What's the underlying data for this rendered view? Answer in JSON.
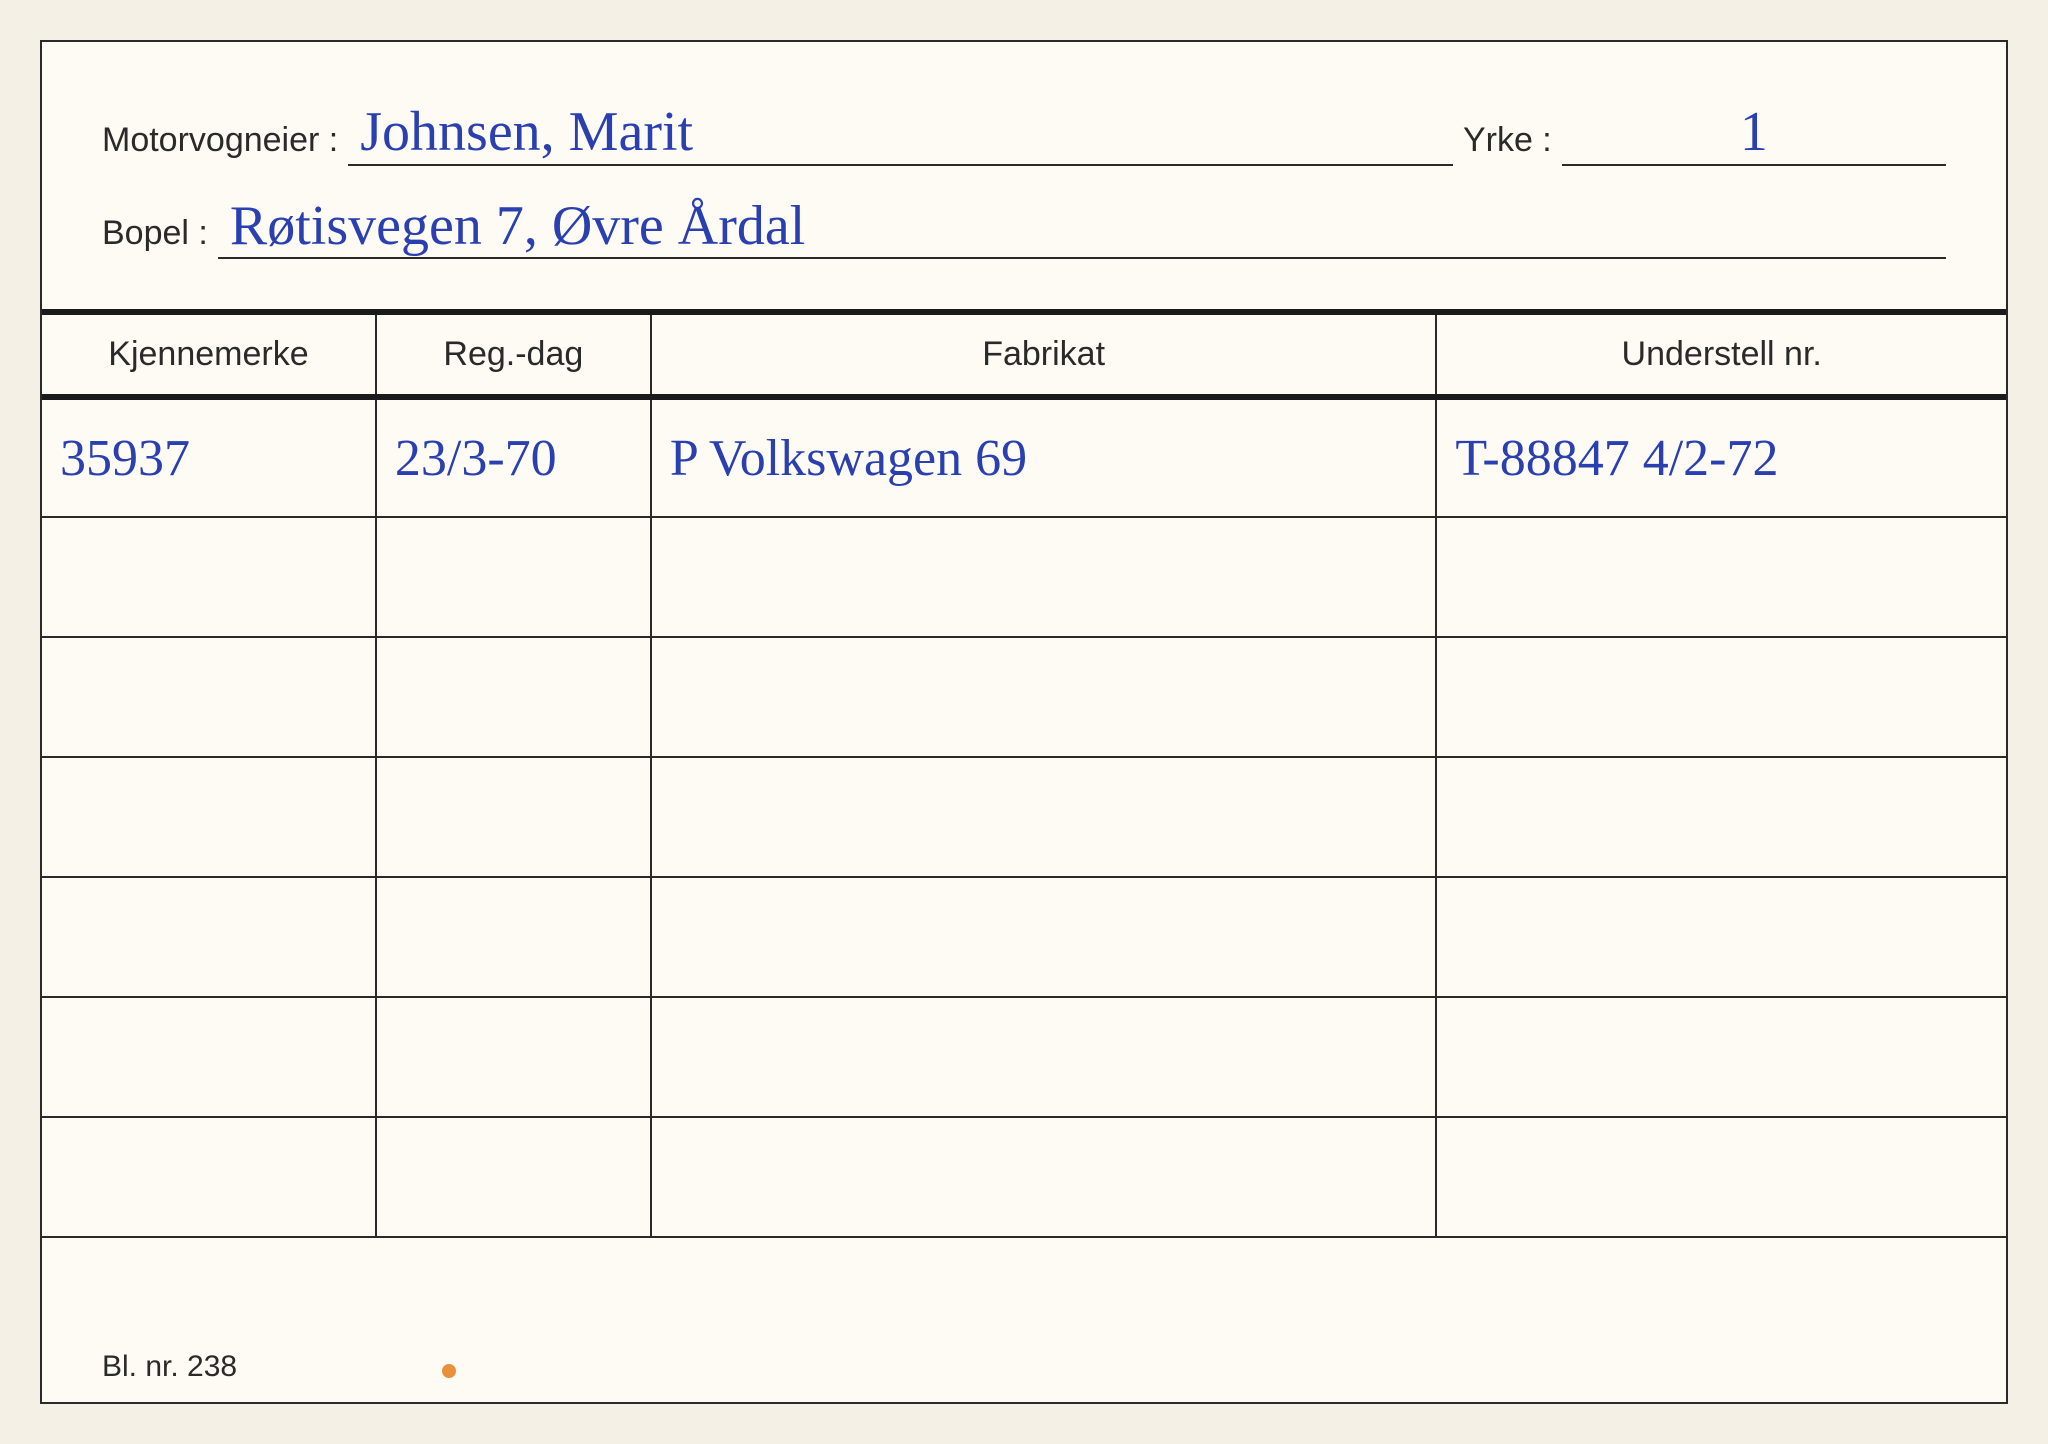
{
  "labels": {
    "motorvogneier": "Motorvogneier :",
    "yrke": "Yrke :",
    "bopel": "Bopel :",
    "footer": "Bl. nr. 238"
  },
  "fields": {
    "motorvogneier": "Johnsen, Marit",
    "yrke": "1",
    "bopel": "Røtisvegen 7, Øvre Årdal"
  },
  "columns": [
    "Kjennemerke",
    "Reg.-dag",
    "Fabrikat",
    "Understell nr."
  ],
  "rows": [
    {
      "kjennemerke": "35937",
      "reg_dag": "23/3-70",
      "fabrikat": "P   Volkswagen 69",
      "understell": "T-88847  4/2-72"
    },
    {
      "kjennemerke": "",
      "reg_dag": "",
      "fabrikat": "",
      "understell": ""
    },
    {
      "kjennemerke": "",
      "reg_dag": "",
      "fabrikat": "",
      "understell": ""
    },
    {
      "kjennemerke": "",
      "reg_dag": "",
      "fabrikat": "",
      "understell": ""
    },
    {
      "kjennemerke": "",
      "reg_dag": "",
      "fabrikat": "",
      "understell": ""
    },
    {
      "kjennemerke": "",
      "reg_dag": "",
      "fabrikat": "",
      "understell": ""
    },
    {
      "kjennemerke": "",
      "reg_dag": "",
      "fabrikat": "",
      "understell": ""
    }
  ],
  "colors": {
    "ink": "#2a3fb0",
    "print": "#2a2a2a",
    "paper": "#fdfbf4",
    "background": "#f5f0e6"
  }
}
